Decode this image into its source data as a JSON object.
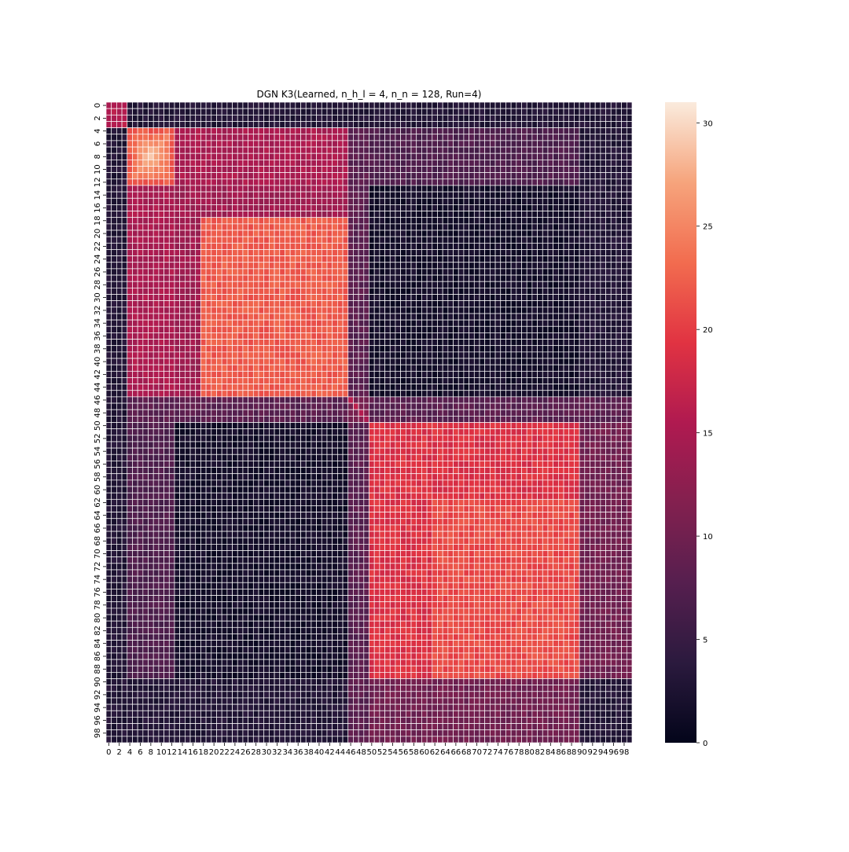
{
  "chart_data": {
    "type": "heatmap",
    "title": "DGN K3(Learned, n_h_l = 4, n_n = 128, Run=4)",
    "n_rows": 100,
    "n_cols": 100,
    "x_tick_labels": [
      "0",
      "2",
      "4",
      "6",
      "8",
      "10",
      "12",
      "14",
      "16",
      "18",
      "20",
      "22",
      "24",
      "26",
      "28",
      "30",
      "32",
      "34",
      "36",
      "38",
      "40",
      "42",
      "44",
      "46",
      "48",
      "50",
      "52",
      "54",
      "56",
      "58",
      "60",
      "62",
      "64",
      "66",
      "68",
      "70",
      "72",
      "74",
      "76",
      "78",
      "80",
      "82",
      "84",
      "86",
      "88",
      "90",
      "92",
      "94",
      "96",
      "98"
    ],
    "y_tick_labels": [
      "0",
      "2",
      "4",
      "6",
      "8",
      "10",
      "12",
      "14",
      "16",
      "18",
      "20",
      "22",
      "24",
      "26",
      "28",
      "30",
      "32",
      "34",
      "36",
      "38",
      "40",
      "42",
      "44",
      "46",
      "48",
      "50",
      "52",
      "54",
      "56",
      "58",
      "60",
      "62",
      "64",
      "66",
      "68",
      "70",
      "72",
      "74",
      "76",
      "78",
      "80",
      "82",
      "84",
      "86",
      "88",
      "90",
      "92",
      "94",
      "96",
      "98"
    ],
    "value_range": [
      0,
      31
    ],
    "colormap": "rocket",
    "cell_gridlines": "white",
    "colorbar": {
      "ticks": [
        0,
        5,
        10,
        15,
        20,
        25,
        30
      ],
      "tick_labels": [
        "0",
        "5",
        "10",
        "15",
        "20",
        "25",
        "30"
      ],
      "position": "right"
    },
    "approximate_structure": {
      "rows_0_3": {
        "cols_0_3": 16,
        "elsewhere": 3
      },
      "block_A": {
        "range": [
          4,
          12
        ],
        "value_inner": 29,
        "value_edge": 22,
        "cols_13_45": 15,
        "cols_50_89": 7
      },
      "block_B": {
        "range": [
          13,
          45
        ],
        "value_core_cols_18_45": 22,
        "value_edge_cols_13_17": 14,
        "cols_50_89": 2
      },
      "row_col_46_49": {
        "value": 8,
        "diagonal": 16
      },
      "block_C": {
        "range": [
          50,
          89
        ],
        "value_core_cols_62_89": 21,
        "value_edge_cols_50_61": 19,
        "cols_5_12": 9,
        "cols_13_45": 1.5
      },
      "rows_90_99": {
        "value": 3,
        "cols_50_89": 10
      }
    }
  }
}
